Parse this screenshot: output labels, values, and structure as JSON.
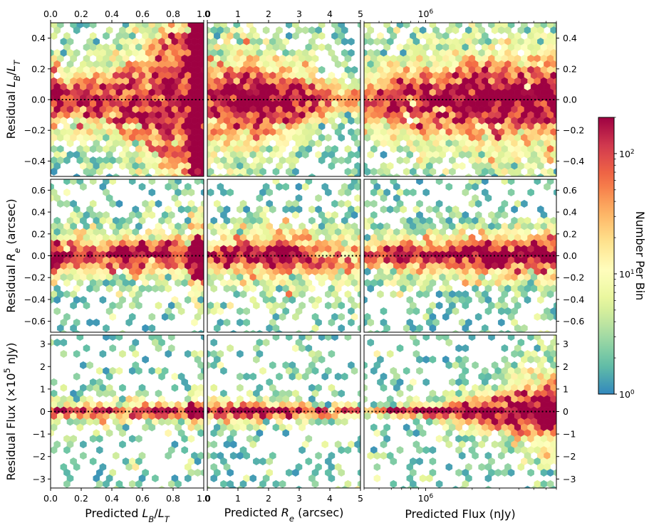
{
  "chart_data": {
    "type": "heatmap",
    "subtype": "hexbin-grid",
    "colormap": "Spectral_r",
    "grid": false,
    "colorbar": {
      "label": "Number Per Bin",
      "scale": "log",
      "range": [
        1,
        200
      ],
      "ticks": [
        1,
        10,
        100
      ],
      "tick_labels": [
        "10^0",
        "10^1",
        "10^2"
      ],
      "colors": [
        "#3288bd",
        "#66c2a5",
        "#abdda4",
        "#e6f598",
        "#ffffbf",
        "#fee08b",
        "#fdae61",
        "#f46d43",
        "#d53e4f",
        "#9e0142"
      ]
    },
    "columns": [
      {
        "xlabel": "Predicted L_B/L_T",
        "xlim": [
          0,
          1
        ],
        "xscale": "linear",
        "ticks": [
          0,
          0.2,
          0.4,
          0.6,
          0.8,
          1.0
        ],
        "tick_labels": [
          "0.0",
          "0.2",
          "0.4",
          "0.6",
          "0.8",
          "1.0"
        ]
      },
      {
        "xlabel": "Predicted R_e (arcsec)",
        "xlim": [
          0,
          5
        ],
        "xscale": "linear",
        "ticks": [
          0,
          1,
          2,
          3,
          4,
          5
        ],
        "tick_labels": [
          "0",
          "1",
          "2",
          "3",
          "4",
          "5"
        ]
      },
      {
        "xlabel": "Predicted Flux (nJy)",
        "xlim": [
          400000,
          7000000
        ],
        "xscale": "log",
        "ticks": [
          1000000
        ],
        "tick_labels": [
          "10^6"
        ]
      }
    ],
    "rows": [
      {
        "ylabel": "Residual L_B/L_T",
        "ylim": [
          -0.5,
          0.5
        ],
        "ticks": [
          -0.4,
          -0.2,
          0,
          0.2,
          0.4
        ],
        "tick_labels": [
          "-0.4",
          "-0.2",
          "0.0",
          "0.2",
          "0.4"
        ]
      },
      {
        "ylabel": "Residual R_e (arcsec)",
        "ylim": [
          -0.7,
          0.7
        ],
        "ticks": [
          -0.6,
          -0.4,
          -0.2,
          0,
          0.2,
          0.4,
          0.6
        ],
        "tick_labels": [
          "-0.6",
          "-0.4",
          "-0.2",
          "0.0",
          "0.2",
          "0.4",
          "0.6"
        ]
      },
      {
        "ylabel": "Residual Flux (×10^5 nJy)",
        "ylim": [
          -3.4,
          3.4
        ],
        "ticks": [
          -3,
          -2,
          -1,
          0,
          1,
          2,
          3
        ],
        "tick_labels": [
          "-3",
          "-2",
          "-1",
          "0",
          "1",
          "2",
          "3"
        ]
      }
    ],
    "reference_line": {
      "y": 0,
      "style": "dotted",
      "color": "#000000"
    }
  }
}
